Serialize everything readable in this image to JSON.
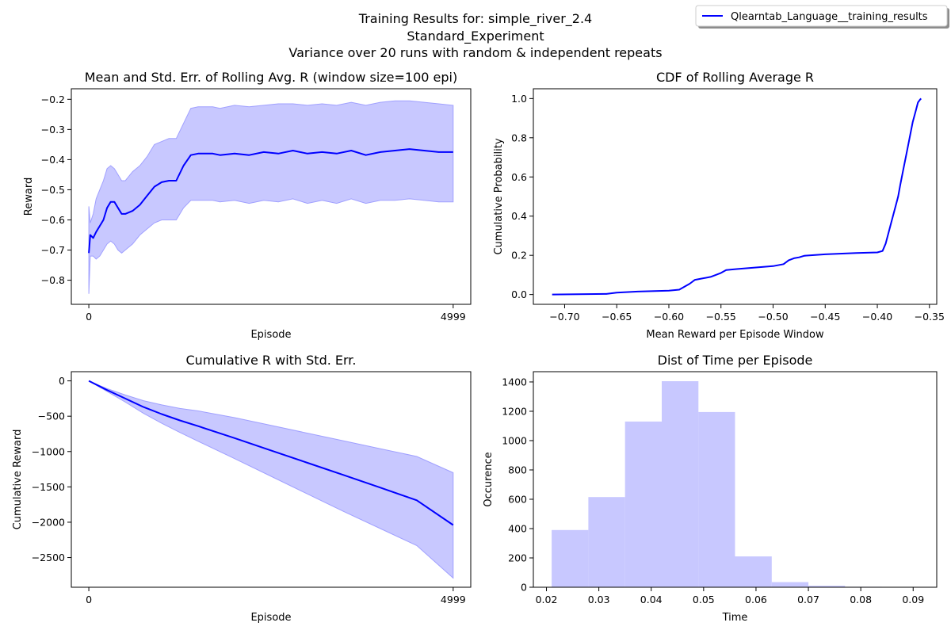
{
  "figure": {
    "title_lines": [
      "Training Results for: simple_river_2.4",
      "Standard_Experiment",
      "Variance over 20 runs with random & independent repeats"
    ],
    "legend": {
      "label": "Qlearntab_Language__training_results",
      "placement": "upper-right"
    },
    "line_color": "#0000ff",
    "fill_color": "#c8c8ff",
    "fill_edge_color": "#a0a0ff"
  },
  "chart_data": [
    {
      "id": "rolling",
      "type": "line",
      "title": "Mean and Std. Err. of Rolling Avg. R (window size=100 epi)",
      "xlabel": "Episode",
      "ylabel": "Reward",
      "xlim": [
        -240,
        5240
      ],
      "ylim": [
        -0.88,
        -0.165
      ],
      "xticks": [
        0,
        4999
      ],
      "yticks": [
        -0.8,
        -0.7,
        -0.6,
        -0.5,
        -0.4,
        -0.3,
        -0.2
      ],
      "grid": false,
      "series": [
        {
          "x": [
            0,
            20,
            60,
            100,
            150,
            200,
            250,
            300,
            350,
            400,
            450,
            500,
            600,
            700,
            800,
            900,
            1000,
            1100,
            1200,
            1300,
            1400,
            1500,
            1600,
            1700,
            1800,
            2000,
            2200,
            2400,
            2600,
            2800,
            3000,
            3200,
            3400,
            3600,
            3800,
            4000,
            4200,
            4400,
            4600,
            4800,
            4999
          ],
          "mean": [
            -0.71,
            -0.65,
            -0.66,
            -0.64,
            -0.62,
            -0.6,
            -0.56,
            -0.54,
            -0.54,
            -0.56,
            -0.58,
            -0.58,
            -0.57,
            -0.55,
            -0.52,
            -0.49,
            -0.475,
            -0.47,
            -0.47,
            -0.42,
            -0.385,
            -0.38,
            -0.38,
            -0.38,
            -0.385,
            -0.38,
            -0.385,
            -0.375,
            -0.38,
            -0.37,
            -0.38,
            -0.375,
            -0.38,
            -0.37,
            -0.385,
            -0.375,
            -0.37,
            -0.365,
            -0.37,
            -0.375,
            -0.375
          ],
          "upper": [
            -0.555,
            -0.61,
            -0.58,
            -0.53,
            -0.5,
            -0.47,
            -0.43,
            -0.42,
            -0.43,
            -0.45,
            -0.47,
            -0.47,
            -0.44,
            -0.42,
            -0.39,
            -0.35,
            -0.34,
            -0.33,
            -0.33,
            -0.28,
            -0.23,
            -0.225,
            -0.225,
            -0.225,
            -0.23,
            -0.22,
            -0.225,
            -0.22,
            -0.215,
            -0.215,
            -0.22,
            -0.215,
            -0.22,
            -0.21,
            -0.22,
            -0.21,
            -0.205,
            -0.205,
            -0.21,
            -0.215,
            -0.22
          ],
          "lower": [
            -0.845,
            -0.72,
            -0.72,
            -0.73,
            -0.72,
            -0.7,
            -0.68,
            -0.67,
            -0.68,
            -0.7,
            -0.71,
            -0.7,
            -0.68,
            -0.65,
            -0.63,
            -0.61,
            -0.6,
            -0.6,
            -0.6,
            -0.56,
            -0.535,
            -0.535,
            -0.535,
            -0.535,
            -0.54,
            -0.535,
            -0.545,
            -0.535,
            -0.54,
            -0.53,
            -0.545,
            -0.535,
            -0.545,
            -0.53,
            -0.545,
            -0.535,
            -0.535,
            -0.53,
            -0.535,
            -0.54,
            -0.54
          ]
        }
      ]
    },
    {
      "id": "cdf",
      "type": "line",
      "title": "CDF of Rolling Average R",
      "xlabel": "Mean Reward per Episode Window",
      "ylabel": "Cumulative Probability",
      "xlim": [
        -0.73,
        -0.343
      ],
      "ylim": [
        -0.05,
        1.05
      ],
      "xticks": [
        -0.7,
        -0.65,
        -0.6,
        -0.55,
        -0.5,
        -0.45,
        -0.4,
        -0.35
      ],
      "xtick_labels": [
        "−0.70",
        "−0.65",
        "−0.60",
        "−0.55",
        "−0.50",
        "−0.45",
        "−0.40",
        "−0.35"
      ],
      "yticks": [
        0.0,
        0.2,
        0.4,
        0.6,
        0.8,
        1.0
      ],
      "ytick_labels": [
        "0.0",
        "0.2",
        "0.4",
        "0.6",
        "0.8",
        "1.0"
      ],
      "grid": false,
      "series": [
        {
          "x": [
            -0.712,
            -0.66,
            -0.65,
            -0.63,
            -0.6,
            -0.59,
            -0.585,
            -0.58,
            -0.575,
            -0.57,
            -0.56,
            -0.555,
            -0.55,
            -0.545,
            -0.535,
            -0.5,
            -0.49,
            -0.485,
            -0.48,
            -0.475,
            -0.47,
            -0.45,
            -0.42,
            -0.4,
            -0.395,
            -0.392,
            -0.389,
            -0.386,
            -0.383,
            -0.38,
            -0.378,
            -0.375,
            -0.372,
            -0.369,
            -0.366,
            -0.363,
            -0.361,
            -0.359,
            -0.358
          ],
          "y": [
            0.0,
            0.003,
            0.01,
            0.015,
            0.02,
            0.025,
            0.04,
            0.055,
            0.075,
            0.08,
            0.09,
            0.1,
            0.11,
            0.125,
            0.13,
            0.145,
            0.155,
            0.175,
            0.185,
            0.19,
            0.198,
            0.205,
            0.212,
            0.215,
            0.222,
            0.26,
            0.32,
            0.38,
            0.44,
            0.5,
            0.56,
            0.64,
            0.72,
            0.8,
            0.88,
            0.94,
            0.98,
            0.995,
            1.0
          ]
        }
      ]
    },
    {
      "id": "cumulative",
      "type": "line",
      "title": "Cumulative R with Std. Err.",
      "xlabel": "Episode",
      "ylabel": "Cumulative Reward",
      "xlim": [
        -240,
        5240
      ],
      "ylim": [
        -2920,
        130
      ],
      "xticks": [
        0,
        4999
      ],
      "yticks": [
        0,
        -500,
        -1000,
        -1500,
        -2000,
        -2500
      ],
      "ytick_labels": [
        "0",
        "−500",
        "−1000",
        "−1500",
        "−2000",
        "−2500"
      ],
      "grid": false,
      "series": [
        {
          "x": [
            0,
            250,
            500,
            750,
            1000,
            1250,
            1500,
            2000,
            2500,
            3000,
            3500,
            4000,
            4500,
            4999
          ],
          "mean": [
            0,
            -130,
            -250,
            -370,
            -470,
            -560,
            -640,
            -810,
            -985,
            -1160,
            -1335,
            -1510,
            -1690,
            -2040
          ],
          "upper": [
            0,
            -110,
            -200,
            -280,
            -340,
            -390,
            -425,
            -520,
            -630,
            -740,
            -850,
            -960,
            -1070,
            -1300
          ],
          "lower": [
            0,
            -150,
            -300,
            -460,
            -600,
            -730,
            -855,
            -1100,
            -1350,
            -1600,
            -1850,
            -2090,
            -2330,
            -2790
          ]
        }
      ]
    },
    {
      "id": "histogram",
      "type": "bar",
      "title": "Dist of Time per Episode",
      "xlabel": "Time",
      "ylabel": "Occurence",
      "xlim": [
        0.0175,
        0.0945
      ],
      "ylim": [
        0,
        1470
      ],
      "xticks": [
        0.02,
        0.03,
        0.04,
        0.05,
        0.06,
        0.07,
        0.08,
        0.09
      ],
      "xtick_labels": [
        "0.02",
        "0.03",
        "0.04",
        "0.05",
        "0.06",
        "0.07",
        "0.08",
        "0.09"
      ],
      "yticks": [
        0,
        200,
        400,
        600,
        800,
        1000,
        1200,
        1400
      ],
      "grid": false,
      "bin_edges": [
        0.021,
        0.028,
        0.035,
        0.042,
        0.049,
        0.056,
        0.063,
        0.07,
        0.077,
        0.084,
        0.091
      ],
      "values": [
        390,
        615,
        1130,
        1405,
        1195,
        210,
        35,
        10,
        3,
        2
      ]
    }
  ]
}
